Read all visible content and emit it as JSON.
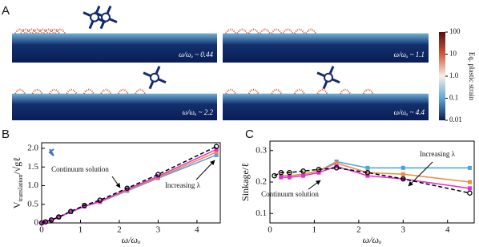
{
  "panel_labels": [
    "A",
    "B",
    "C"
  ],
  "simulations": [
    "ω/ωₒ ~ 0.44",
    "ω/ωₒ ~ 1.1",
    "ω/ωₒ ~ 2.2",
    "ω/ωₒ ~ 4.4"
  ],
  "colorbar": {
    "label": "Eq. plastic strain",
    "scale": "log",
    "lim": [
      0.01,
      100
    ],
    "ticks": [
      100,
      10,
      {
        "value": 1,
        "label": "1.0"
      },
      0.1,
      0.01
    ]
  },
  "chart_data": [
    {
      "type": "line",
      "xlabel": "ω/ωₒ",
      "ylabel": {
        "base": "V",
        "subscript": "translation",
        "tail": "/√gℓ"
      },
      "xlim": [
        0,
        4.6
      ],
      "ylim": [
        0,
        2.15
      ],
      "xticks": [
        0,
        1,
        2,
        3,
        4
      ],
      "yticks": [
        0,
        0.5,
        {
          "value": 1,
          "label": "1.0"
        },
        1.5,
        {
          "value": 2,
          "label": "2.0"
        }
      ],
      "annotations": [
        "Continuum solution",
        "Increasing λ"
      ],
      "series": [
        {
          "color": "#4aa3df",
          "marker": "square",
          "x": [
            0,
            0.1,
            0.25,
            0.44,
            0.75,
            1.1,
            1.5,
            2.2,
            3,
            4.5
          ],
          "values": [
            0,
            0.03,
            0.07,
            0.15,
            0.29,
            0.44,
            0.56,
            0.86,
            1.2,
            1.82
          ]
        },
        {
          "color": "#f08a3c",
          "marker": "square",
          "x": [
            0,
            0.1,
            0.25,
            0.44,
            0.75,
            1.1,
            1.5,
            2.2,
            3,
            4.5
          ],
          "values": [
            0,
            0.03,
            0.07,
            0.15,
            0.3,
            0.45,
            0.57,
            0.88,
            1.22,
            1.9
          ]
        },
        {
          "color": "#e62ad8",
          "marker": "square",
          "x": [
            0,
            0.1,
            0.25,
            0.44,
            0.75,
            1.1,
            1.5,
            2.2,
            3,
            4.5
          ],
          "values": [
            0,
            0.03,
            0.08,
            0.16,
            0.3,
            0.45,
            0.58,
            0.9,
            1.25,
            1.97
          ]
        },
        {
          "color": "#000000",
          "marker": "circle",
          "dashed": true,
          "x": [
            0,
            0.1,
            0.25,
            0.44,
            0.75,
            1.1,
            1.5,
            2.2,
            3,
            4.5
          ],
          "values": [
            0,
            0.03,
            0.08,
            0.16,
            0.31,
            0.47,
            0.61,
            0.93,
            1.3,
            2.05
          ]
        }
      ]
    },
    {
      "type": "line",
      "xlabel": "ω/ωₒ",
      "ylabel": {
        "base": "Sinkage/ℓ"
      },
      "xlim": [
        0,
        4.6
      ],
      "ylim": [
        0.07,
        0.33
      ],
      "xticks": [
        0,
        1,
        2,
        3,
        4
      ],
      "yticks": [
        0.1,
        0.2,
        0.3
      ],
      "annotations": [
        "Continuum solution",
        "Increasing λ"
      ],
      "series": [
        {
          "color": "#4aa3df",
          "marker": "square",
          "x": [
            0.25,
            0.44,
            0.75,
            1.1,
            1.5,
            2.2,
            3,
            4.5
          ],
          "values": [
            0.22,
            0.22,
            0.225,
            0.235,
            0.265,
            0.245,
            0.245,
            0.245
          ]
        },
        {
          "color": "#f08a3c",
          "marker": "square",
          "x": [
            0.25,
            0.44,
            0.75,
            1.1,
            1.5,
            2.2,
            3,
            4.5
          ],
          "values": [
            0.22,
            0.22,
            0.225,
            0.235,
            0.26,
            0.23,
            0.225,
            0.2
          ]
        },
        {
          "color": "#e62ad8",
          "marker": "square",
          "x": [
            0.25,
            0.44,
            0.75,
            1.1,
            1.5,
            2.2,
            3,
            4.5
          ],
          "values": [
            0.215,
            0.215,
            0.22,
            0.23,
            0.25,
            0.22,
            0.21,
            0.18
          ]
        },
        {
          "color": "#000000",
          "marker": "circle",
          "dashed": true,
          "x": [
            0.1,
            0.25,
            0.44,
            0.75,
            1.1,
            1.5,
            2.2,
            3,
            4.5
          ],
          "values": [
            0.22,
            0.23,
            0.23,
            0.235,
            0.24,
            0.245,
            0.23,
            0.21,
            0.165
          ]
        }
      ]
    }
  ]
}
